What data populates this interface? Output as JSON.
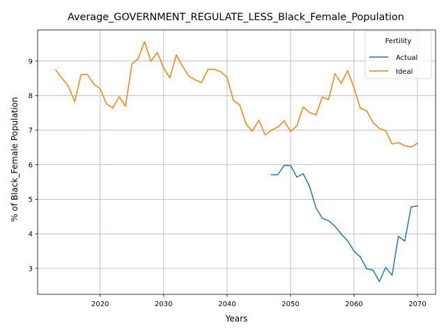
{
  "chart_data": {
    "type": "line",
    "title": "Average_GOVERNMENT_REGULATE_LESS_Black_Female_Population",
    "xlabel": "Years",
    "ylabel": "% of Black_Female Population",
    "xlim": [
      2010.15,
      2072.85
    ],
    "ylim": [
      2.25,
      9.9
    ],
    "xticks": [
      2020,
      2030,
      2040,
      2050,
      2060,
      2070
    ],
    "yticks": [
      3,
      4,
      5,
      6,
      7,
      8,
      9
    ],
    "grid": true,
    "legend": {
      "title": "Fertility",
      "placement": "top-right"
    },
    "series": [
      {
        "name": "Actual",
        "color": "#1f77b4",
        "x": [
          2047,
          2048,
          2049,
          2050,
          2051,
          2052,
          2053,
          2054,
          2055,
          2056,
          2057,
          2058,
          2059,
          2060,
          2061,
          2062,
          2063,
          2064,
          2065,
          2066,
          2067,
          2068,
          2069,
          2070
        ],
        "values": [
          5.71,
          5.71,
          5.98,
          5.98,
          5.64,
          5.74,
          5.37,
          4.76,
          4.45,
          4.38,
          4.22,
          3.99,
          3.8,
          3.5,
          3.33,
          2.99,
          2.95,
          2.62,
          3.03,
          2.8,
          3.93,
          3.79,
          4.78,
          4.81
        ]
      },
      {
        "name": "Ideal",
        "color": "#ff7f0e",
        "x": [
          2013,
          2014,
          2015,
          2016,
          2017,
          2018,
          2019,
          2020,
          2021,
          2022,
          2023,
          2024,
          2025,
          2026,
          2027,
          2028,
          2029,
          2030,
          2031,
          2032,
          2033,
          2034,
          2035,
          2036,
          2037,
          2038,
          2039,
          2040,
          2041,
          2042,
          2043,
          2044,
          2045,
          2046,
          2047,
          2048,
          2049,
          2050,
          2051,
          2052,
          2053,
          2054,
          2055,
          2056,
          2057,
          2058,
          2059,
          2060,
          2061,
          2062,
          2063,
          2064,
          2065,
          2066,
          2067,
          2068,
          2069,
          2070
        ],
        "values": [
          8.74,
          8.5,
          8.27,
          7.83,
          8.61,
          8.61,
          8.33,
          8.2,
          7.76,
          7.64,
          7.97,
          7.69,
          8.91,
          9.07,
          9.56,
          8.99,
          9.25,
          8.8,
          8.51,
          9.18,
          8.84,
          8.56,
          8.45,
          8.38,
          8.76,
          8.76,
          8.69,
          8.53,
          7.86,
          7.73,
          7.17,
          6.97,
          7.29,
          6.86,
          7.0,
          7.09,
          7.27,
          6.96,
          7.13,
          7.67,
          7.51,
          7.44,
          7.96,
          7.88,
          8.64,
          8.35,
          8.72,
          8.23,
          7.63,
          7.56,
          7.22,
          7.05,
          6.98,
          6.6,
          6.64,
          6.55,
          6.51,
          6.62
        ]
      }
    ]
  }
}
